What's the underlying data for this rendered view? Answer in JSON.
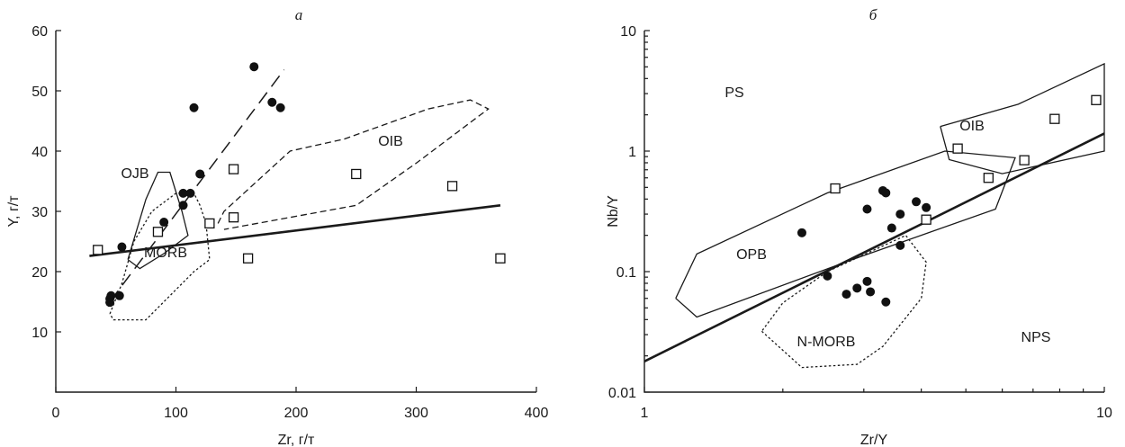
{
  "chart_data": [
    {
      "panel": "a",
      "type": "scatter",
      "xlabel": "Zr, г/т",
      "ylabel": "Y, г/т",
      "xlim": [
        0,
        400
      ],
      "ylim": [
        0,
        60
      ],
      "xticks": [
        0,
        100,
        200,
        300,
        400
      ],
      "yticks": [
        10,
        20,
        30,
        40,
        50,
        60
      ],
      "x_scale": "linear",
      "y_scale": "linear",
      "grid": false,
      "series": [
        {
          "marker": "filled-circle",
          "points": [
            [
              165,
              54
            ],
            [
              115,
              47.2
            ],
            [
              180,
              48.1
            ],
            [
              187,
              47.2
            ],
            [
              120,
              36.2
            ],
            [
              106,
              33
            ],
            [
              112,
              33
            ],
            [
              106,
              31
            ],
            [
              90,
              28.2
            ],
            [
              55,
              24.1
            ],
            [
              53,
              16
            ],
            [
              46,
              16
            ],
            [
              45,
              15.5
            ],
            [
              45,
              14.9
            ]
          ]
        },
        {
          "marker": "open-square",
          "points": [
            [
              35,
              23.6
            ],
            [
              85,
              26.6
            ],
            [
              128,
              28
            ],
            [
              148,
              37
            ],
            [
              148,
              29
            ],
            [
              160,
              22.2
            ],
            [
              250,
              36.2
            ],
            [
              330,
              34.2
            ],
            [
              370,
              22.2
            ]
          ]
        }
      ],
      "fields": [
        {
          "label": "OIB",
          "style": "dashed",
          "points": [
            [
              135,
              28
            ],
            [
              140,
              30
            ],
            [
              195,
              40
            ],
            [
              240,
              42
            ],
            [
              310,
              47
            ],
            [
              345,
              48.5
            ],
            [
              360,
              47
            ],
            [
              300,
              38
            ],
            [
              250,
              31
            ],
            [
              140,
              27
            ]
          ]
        },
        {
          "label": "OJB",
          "style": "solid",
          "points": [
            [
              60,
              22
            ],
            [
              75,
              32
            ],
            [
              85,
              36.5
            ],
            [
              95,
              36.5
            ],
            [
              105,
              30
            ],
            [
              110,
              26
            ],
            [
              90,
              23
            ],
            [
              70,
              20.5
            ],
            [
              60,
              22
            ]
          ]
        },
        {
          "label": "MORB",
          "style": "dotted",
          "points": [
            [
              45,
              13
            ],
            [
              55,
              18
            ],
            [
              65,
              25
            ],
            [
              80,
              30
            ],
            [
              100,
              33
            ],
            [
              115,
              33
            ],
            [
              120,
              31
            ],
            [
              125,
              28
            ],
            [
              128,
              22
            ],
            [
              115,
              20
            ],
            [
              95,
              16
            ],
            [
              75,
              12
            ],
            [
              48,
              12
            ],
            [
              45,
              13
            ]
          ]
        }
      ],
      "lines": [
        {
          "style": "long-dash",
          "from": [
            45,
            15
          ],
          "to": [
            190,
            53.5
          ]
        },
        {
          "style": "thick-solid",
          "from": [
            28,
            22.6
          ],
          "to": [
            370,
            31
          ]
        }
      ]
    },
    {
      "panel": "б",
      "type": "scatter",
      "xlabel": "Zr/Y",
      "ylabel": "Nb/Y",
      "xlim": [
        1,
        10
      ],
      "ylim": [
        0.01,
        10
      ],
      "xticks": [
        "1",
        "10"
      ],
      "yticks": [
        "0.01",
        "0.1",
        "1",
        "10"
      ],
      "x_scale": "log",
      "y_scale": "log",
      "grid": false,
      "series": [
        {
          "marker": "filled-circle",
          "points": [
            [
              2.2,
              0.21
            ],
            [
              3.05,
              0.33
            ],
            [
              3.3,
              0.47
            ],
            [
              3.35,
              0.45
            ],
            [
              3.6,
              0.3
            ],
            [
              3.45,
              0.23
            ],
            [
              3.9,
              0.38
            ],
            [
              4.1,
              0.34
            ],
            [
              3.6,
              0.165
            ],
            [
              2.5,
              0.092
            ],
            [
              3.05,
              0.083
            ],
            [
              2.9,
              0.073
            ],
            [
              3.1,
              0.068
            ],
            [
              2.75,
              0.065
            ],
            [
              3.35,
              0.056
            ]
          ]
        },
        {
          "marker": "open-square",
          "points": [
            [
              2.6,
              0.49
            ],
            [
              4.1,
              0.27
            ],
            [
              4.8,
              1.05
            ],
            [
              5.6,
              0.6
            ],
            [
              6.7,
              0.84
            ],
            [
              7.8,
              1.85
            ],
            [
              9.6,
              2.65
            ]
          ]
        }
      ],
      "fields": [
        {
          "label": "OPB",
          "style": "solid",
          "points": [
            [
              1.17,
              0.06
            ],
            [
              1.3,
              0.14
            ],
            [
              2.5,
              0.45
            ],
            [
              4.5,
              1.0
            ],
            [
              6.4,
              0.88
            ],
            [
              5.8,
              0.33
            ],
            [
              2.9,
              0.13
            ],
            [
              1.3,
              0.042
            ],
            [
              1.17,
              0.06
            ]
          ]
        },
        {
          "label": "OIB",
          "style": "solid",
          "points": [
            [
              4.4,
              1.6
            ],
            [
              6.5,
              2.45
            ],
            [
              10,
              5.3
            ],
            [
              10,
              1.0
            ],
            [
              6,
              0.65
            ],
            [
              4.6,
              0.85
            ],
            [
              4.4,
              1.6
            ]
          ]
        },
        {
          "label": "N-MORB",
          "style": "dotted",
          "points": [
            [
              1.8,
              0.032
            ],
            [
              2.2,
              0.016
            ],
            [
              2.9,
              0.017
            ],
            [
              3.3,
              0.024
            ],
            [
              4.0,
              0.06
            ],
            [
              4.1,
              0.12
            ],
            [
              3.7,
              0.2
            ],
            [
              2.5,
              0.1
            ],
            [
              2.0,
              0.055
            ],
            [
              1.8,
              0.032
            ]
          ]
        }
      ],
      "lines": [
        {
          "style": "thick-solid",
          "from": [
            1,
            0.018
          ],
          "to": [
            10,
            1.4
          ]
        }
      ],
      "region_labels": [
        "PS",
        "NPS"
      ]
    }
  ]
}
